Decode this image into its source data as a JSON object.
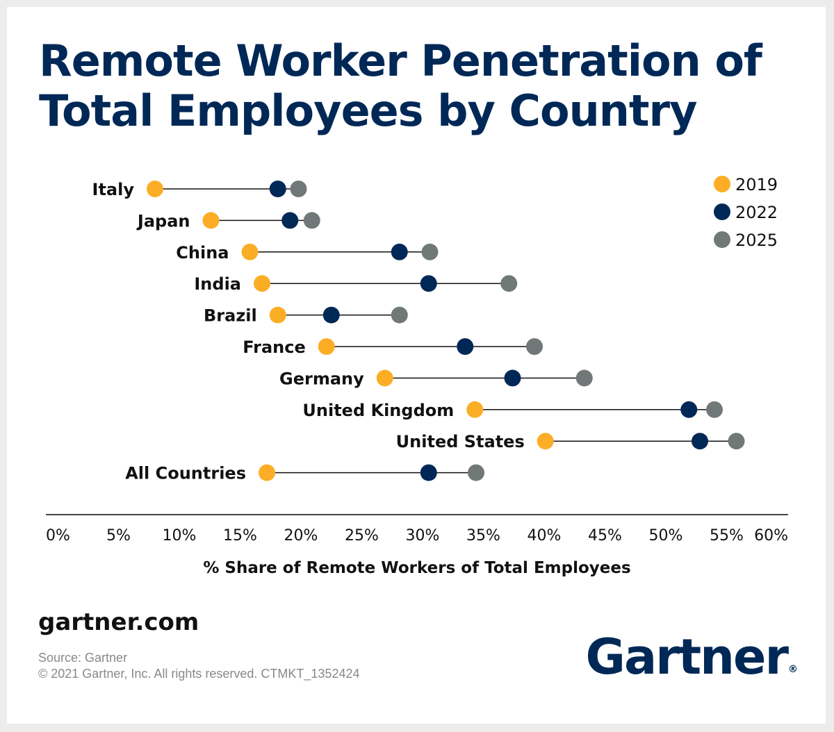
{
  "title_lines": [
    "Remote Worker Penetration of",
    "Total Employees by Country"
  ],
  "colors": {
    "y2019": "#FBAE25",
    "y2022": "#002856",
    "y2025": "#717878",
    "connector": "#111111",
    "axis": "#444444"
  },
  "footer": {
    "site": "gartner.com",
    "source": "Source: Gartner",
    "copyright": "© 2021 Gartner, Inc. All rights reserved. CTMKT_1352424",
    "logo": "Gartner",
    "logo_mark": "®"
  },
  "chart_data": {
    "type": "dot-range",
    "title": "Remote Worker Penetration of Total Employees by Country",
    "xlabel": "% Share of Remote Workers of Total Employees",
    "xlim": [
      0,
      60
    ],
    "xticks": [
      0,
      5,
      10,
      15,
      20,
      25,
      30,
      35,
      40,
      45,
      50,
      55,
      60
    ],
    "xtick_labels": [
      "0%",
      "5%",
      "10%",
      "15%",
      "20%",
      "25%",
      "30%",
      "35%",
      "40%",
      "45%",
      "50%",
      "55%",
      "60%"
    ],
    "legend_position": "top-right",
    "categories": [
      "Italy",
      "Japan",
      "China",
      "India",
      "Brazil",
      "France",
      "Germany",
      "United Kingdom",
      "United States",
      "All Countries"
    ],
    "series": [
      {
        "name": "2019",
        "color": "#FBAE25",
        "values": [
          8,
          12.6,
          15.8,
          16.8,
          18.1,
          22.1,
          26.9,
          34.3,
          40.1,
          17.2
        ]
      },
      {
        "name": "2022",
        "color": "#002856",
        "values": [
          18.1,
          19.1,
          28.1,
          30.5,
          22.5,
          33.5,
          37.4,
          51.9,
          52.8,
          30.5
        ]
      },
      {
        "name": "2025",
        "color": "#717878",
        "values": [
          19.8,
          20.9,
          30.6,
          37.1,
          28.1,
          39.2,
          43.3,
          54.0,
          55.8,
          34.4
        ]
      }
    ]
  }
}
